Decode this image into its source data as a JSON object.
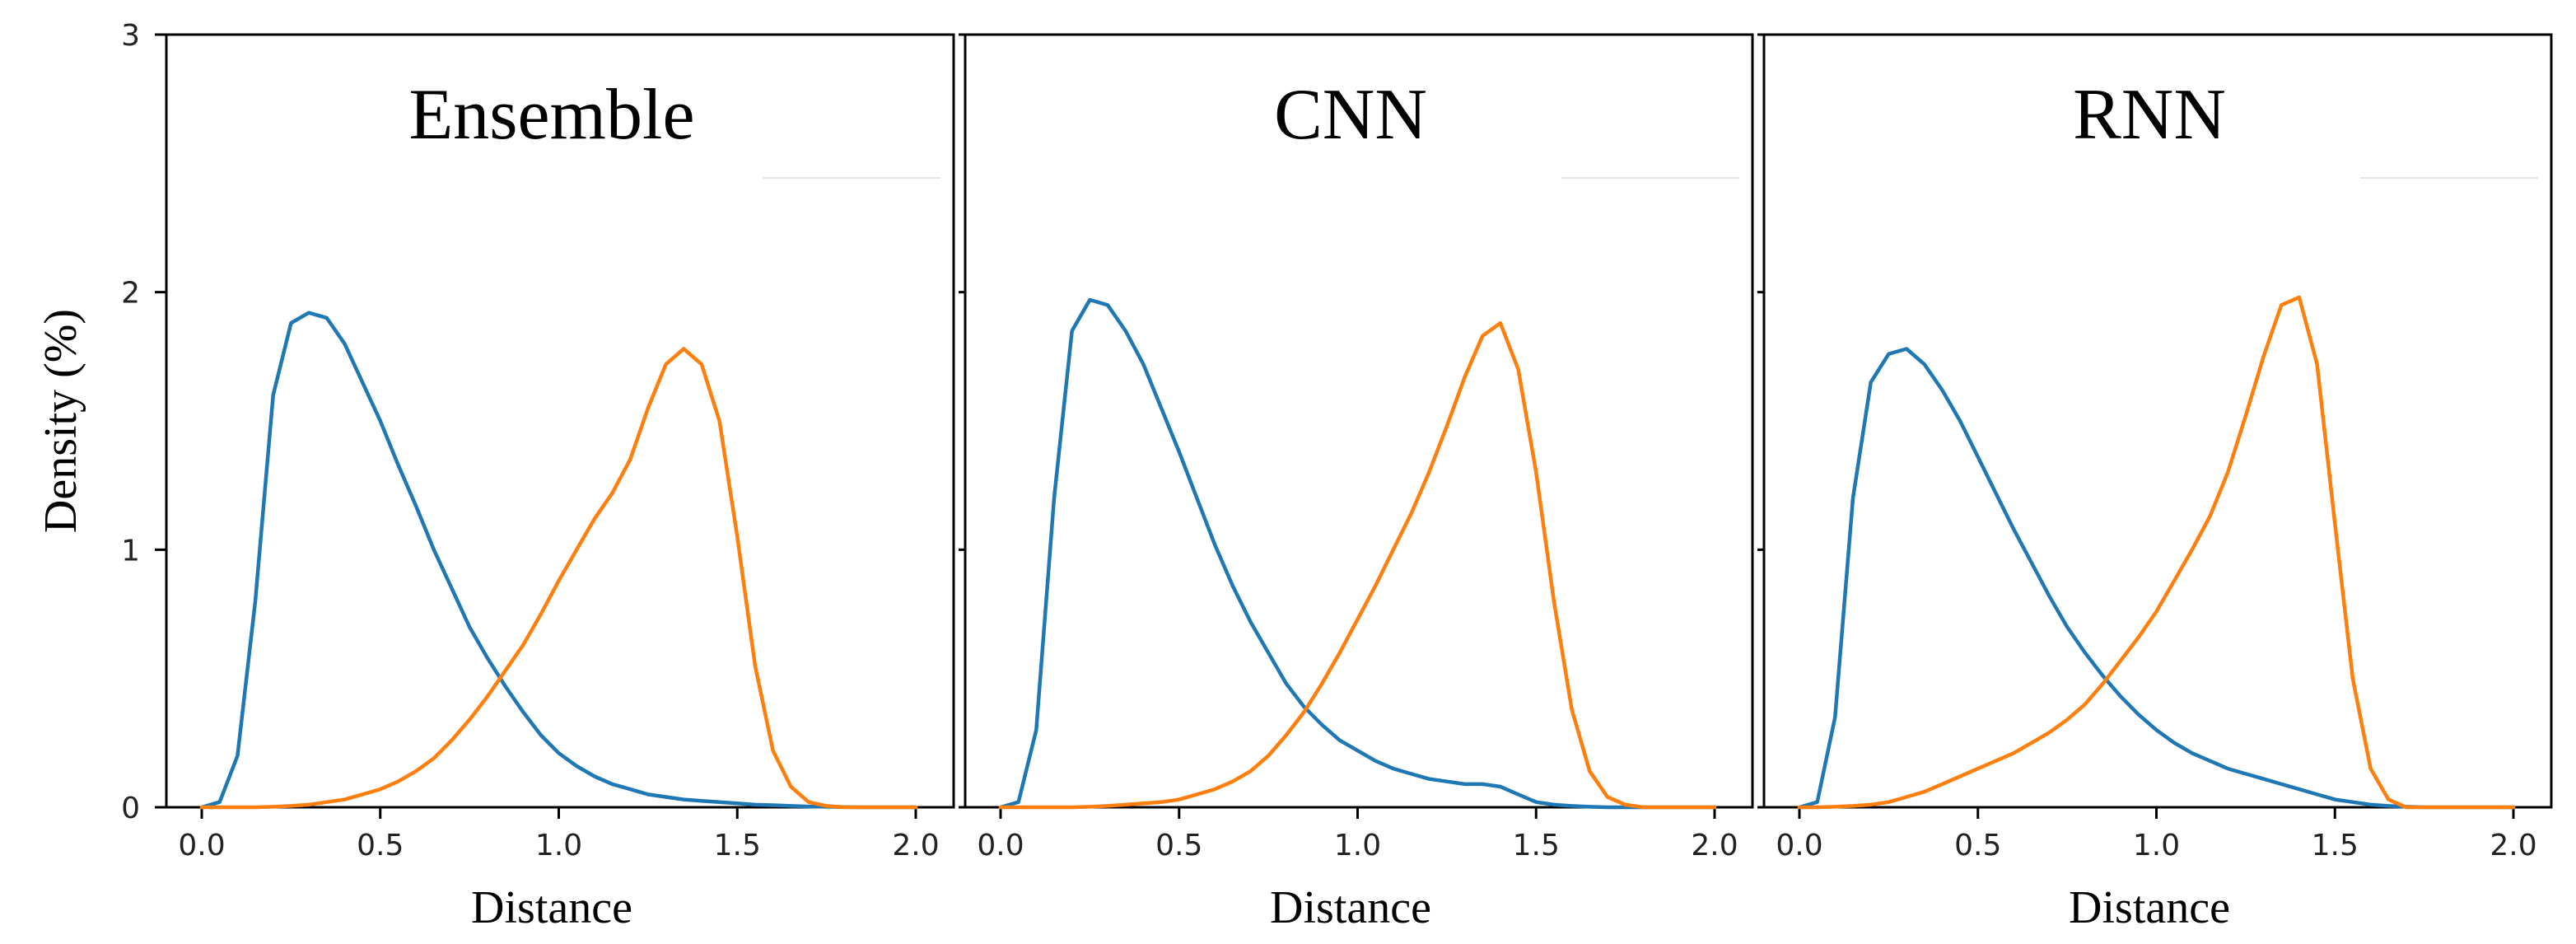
{
  "chart_data": {
    "type": "line",
    "ylabel": "Density (%)",
    "ylim": [
      0,
      3
    ],
    "yticks": [
      0,
      1,
      2,
      3
    ],
    "xticks": [
      0.0,
      0.5,
      1.0,
      1.5,
      2.0
    ],
    "xtick_labels": [
      "0.0",
      "0.5",
      "1.0",
      "1.5",
      "2.0"
    ],
    "ytick_labels": [
      "0",
      "1",
      "2",
      "3"
    ],
    "grid": false,
    "x": [
      0.0,
      0.05,
      0.1,
      0.15,
      0.2,
      0.25,
      0.3,
      0.35,
      0.4,
      0.45,
      0.5,
      0.55,
      0.6,
      0.65,
      0.7,
      0.75,
      0.8,
      0.85,
      0.9,
      0.95,
      1.0,
      1.05,
      1.1,
      1.15,
      1.2,
      1.25,
      1.3,
      1.35,
      1.4,
      1.45,
      1.5,
      1.55,
      1.6,
      1.65,
      1.7,
      1.75,
      1.8,
      1.85,
      1.9,
      1.95,
      2.0
    ],
    "panels": [
      {
        "title": "Ensemble",
        "xlabel": "Distance",
        "xlim": [
          0,
          2
        ],
        "series": [
          {
            "name": "blue",
            "color": "#1f77b4",
            "values": [
              0.0,
              0.02,
              0.2,
              0.8,
              1.6,
              1.88,
              1.92,
              1.9,
              1.8,
              1.65,
              1.5,
              1.33,
              1.17,
              1.0,
              0.85,
              0.7,
              0.58,
              0.47,
              0.37,
              0.28,
              0.21,
              0.16,
              0.12,
              0.09,
              0.07,
              0.05,
              0.04,
              0.03,
              0.025,
              0.02,
              0.015,
              0.01,
              0.008,
              0.005,
              0.003,
              0.002,
              0.001,
              0.0,
              0.0,
              0.0,
              0.0
            ]
          },
          {
            "name": "orange",
            "color": "#ff7f0e",
            "values": [
              0.0,
              0.0,
              0.0,
              0.0,
              0.002,
              0.005,
              0.01,
              0.02,
              0.03,
              0.05,
              0.07,
              0.1,
              0.14,
              0.19,
              0.26,
              0.34,
              0.43,
              0.53,
              0.63,
              0.75,
              0.88,
              1.0,
              1.12,
              1.22,
              1.35,
              1.55,
              1.72,
              1.78,
              1.72,
              1.5,
              1.05,
              0.55,
              0.22,
              0.08,
              0.02,
              0.005,
              0.0,
              0.0,
              0.0,
              0.0,
              0.0
            ]
          }
        ]
      },
      {
        "title": "CNN",
        "xlabel": "Distance",
        "xlim": [
          0,
          2
        ],
        "series": [
          {
            "name": "blue",
            "color": "#1f77b4",
            "values": [
              0.0,
              0.02,
              0.3,
              1.2,
              1.85,
              1.97,
              1.95,
              1.85,
              1.72,
              1.55,
              1.38,
              1.2,
              1.02,
              0.86,
              0.72,
              0.6,
              0.48,
              0.39,
              0.32,
              0.26,
              0.22,
              0.18,
              0.15,
              0.13,
              0.11,
              0.1,
              0.09,
              0.09,
              0.08,
              0.05,
              0.02,
              0.01,
              0.005,
              0.002,
              0.0,
              0.0,
              0.0,
              0.0,
              0.0,
              0.0,
              0.0
            ]
          },
          {
            "name": "orange",
            "color": "#ff7f0e",
            "values": [
              0.0,
              0.0,
              0.0,
              0.0,
              0.0,
              0.002,
              0.005,
              0.01,
              0.015,
              0.02,
              0.03,
              0.05,
              0.07,
              0.1,
              0.14,
              0.2,
              0.28,
              0.37,
              0.48,
              0.6,
              0.73,
              0.86,
              1.0,
              1.14,
              1.3,
              1.48,
              1.67,
              1.83,
              1.88,
              1.7,
              1.3,
              0.8,
              0.38,
              0.14,
              0.04,
              0.01,
              0.0,
              0.0,
              0.0,
              0.0,
              0.0
            ]
          }
        ]
      },
      {
        "title": "RNN",
        "xlabel": "Distance",
        "xlim": [
          0,
          2
        ],
        "series": [
          {
            "name": "blue",
            "color": "#1f77b4",
            "values": [
              0.0,
              0.02,
              0.35,
              1.2,
              1.65,
              1.76,
              1.78,
              1.72,
              1.62,
              1.5,
              1.36,
              1.22,
              1.08,
              0.95,
              0.82,
              0.7,
              0.6,
              0.51,
              0.43,
              0.36,
              0.3,
              0.25,
              0.21,
              0.18,
              0.15,
              0.13,
              0.11,
              0.09,
              0.07,
              0.05,
              0.03,
              0.02,
              0.01,
              0.005,
              0.002,
              0.0,
              0.0,
              0.0,
              0.0,
              0.0,
              0.0
            ]
          },
          {
            "name": "orange",
            "color": "#ff7f0e",
            "values": [
              0.0,
              0.0,
              0.002,
              0.005,
              0.01,
              0.02,
              0.04,
              0.06,
              0.09,
              0.12,
              0.15,
              0.18,
              0.21,
              0.25,
              0.29,
              0.34,
              0.4,
              0.48,
              0.57,
              0.66,
              0.76,
              0.88,
              1.0,
              1.13,
              1.3,
              1.52,
              1.75,
              1.95,
              1.98,
              1.72,
              1.1,
              0.5,
              0.15,
              0.03,
              0.0,
              0.0,
              0.0,
              0.0,
              0.0,
              0.0,
              0.0
            ]
          }
        ]
      }
    ]
  }
}
